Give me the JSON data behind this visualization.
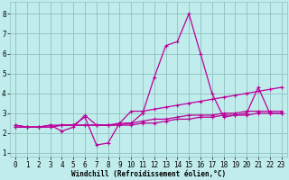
{
  "xlabel": "Windchill (Refroidissement éolien,°C)",
  "bg_color": "#c0ecec",
  "grid_color": "#90c0c0",
  "line_color": "#bb0099",
  "xlim": [
    -0.5,
    23.5
  ],
  "ylim": [
    0.8,
    8.6
  ],
  "xticks": [
    0,
    1,
    2,
    3,
    4,
    5,
    6,
    7,
    8,
    9,
    10,
    11,
    12,
    13,
    14,
    15,
    16,
    17,
    18,
    19,
    20,
    21,
    22,
    23
  ],
  "yticks": [
    1,
    2,
    3,
    4,
    5,
    6,
    7,
    8
  ],
  "series1_x": [
    0,
    1,
    2,
    3,
    4,
    5,
    6,
    7,
    8,
    9,
    10,
    11,
    12,
    13,
    14,
    15,
    16,
    17,
    18,
    19,
    20,
    21,
    22,
    23
  ],
  "series1_y": [
    2.3,
    2.3,
    2.3,
    2.3,
    2.4,
    2.4,
    2.8,
    1.4,
    1.5,
    2.5,
    3.1,
    3.1,
    3.2,
    3.3,
    3.4,
    3.5,
    3.6,
    3.7,
    3.8,
    3.9,
    4.0,
    4.1,
    4.2,
    4.3
  ],
  "series2_x": [
    0,
    1,
    2,
    3,
    4,
    5,
    6,
    7,
    8,
    9,
    10,
    11,
    12,
    13,
    14,
    15,
    16,
    17,
    18,
    19,
    20,
    21,
    22,
    23
  ],
  "series2_y": [
    2.4,
    2.3,
    2.3,
    2.4,
    2.1,
    2.3,
    2.9,
    2.4,
    2.4,
    2.4,
    2.5,
    3.0,
    4.8,
    6.4,
    6.6,
    8.0,
    6.0,
    4.0,
    2.8,
    2.9,
    3.0,
    4.3,
    3.0,
    3.0
  ],
  "series3_x": [
    0,
    1,
    2,
    3,
    4,
    5,
    6,
    7,
    8,
    9,
    10,
    11,
    12,
    13,
    14,
    15,
    16,
    17,
    18,
    19,
    20,
    21,
    22,
    23
  ],
  "series3_y": [
    2.4,
    2.3,
    2.3,
    2.3,
    2.4,
    2.4,
    2.4,
    2.4,
    2.4,
    2.5,
    2.5,
    2.6,
    2.7,
    2.7,
    2.8,
    2.9,
    2.9,
    2.9,
    3.0,
    3.0,
    3.1,
    3.1,
    3.1,
    3.1
  ],
  "series4_x": [
    0,
    1,
    2,
    3,
    4,
    5,
    6,
    7,
    8,
    9,
    10,
    11,
    12,
    13,
    14,
    15,
    16,
    17,
    18,
    19,
    20,
    21,
    22,
    23
  ],
  "series4_y": [
    2.3,
    2.3,
    2.3,
    2.4,
    2.4,
    2.4,
    2.4,
    2.4,
    2.4,
    2.4,
    2.4,
    2.5,
    2.5,
    2.6,
    2.7,
    2.7,
    2.8,
    2.8,
    2.9,
    2.9,
    2.9,
    3.0,
    3.0,
    3.0
  ],
  "tick_fontsize": 5.5,
  "xlabel_fontsize": 5.5,
  "marker_size": 2.5,
  "linewidth": 0.9
}
